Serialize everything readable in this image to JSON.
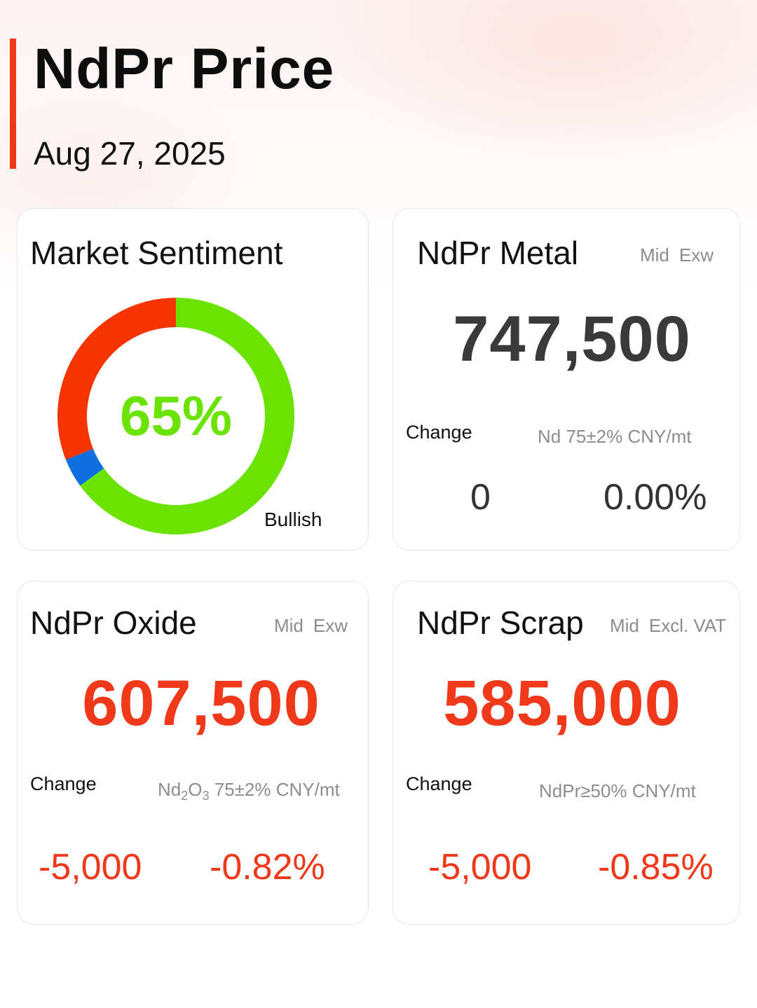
{
  "header": {
    "title": "NdPr Price",
    "date": "Aug 27, 2025"
  },
  "colors": {
    "accent": "#f0391a",
    "bullish": "#6be300",
    "bearish": "#f63400",
    "neutral": "#0f6fe0",
    "price_neutral": "#3a3a3a",
    "price_down": "#f0391a"
  },
  "sentiment": {
    "title": "Market Sentiment",
    "percent_label": "65%",
    "label": "Bullish",
    "segments": [
      {
        "name": "Bullish",
        "value": 0.65,
        "color": "#6be300"
      },
      {
        "name": "Neutral",
        "value": 0.04,
        "color": "#0f6fe0"
      },
      {
        "name": "Bearish",
        "value": 0.31,
        "color": "#f63400"
      }
    ]
  },
  "metal": {
    "title": "NdPr Metal",
    "meta_1": "Mid",
    "meta_2": "Exw",
    "price": "747,500",
    "change_label": "Change",
    "spec": "Nd 75±2% CNY/mt",
    "change_abs": "0",
    "change_pct": "0.00%"
  },
  "oxide": {
    "title": "NdPr Oxide",
    "meta_1": "Mid",
    "meta_2": "Exw",
    "price": "607,500",
    "change_label": "Change",
    "spec_prefix": "Nd",
    "spec_sub1": "2",
    "spec_mid": "O",
    "spec_sub2": "3",
    "spec_suffix": " 75±2% CNY/mt",
    "change_abs": "-5,000",
    "change_pct": "-0.82%"
  },
  "scrap": {
    "title": "NdPr Scrap",
    "meta_1": "Mid",
    "meta_2": "Excl. VAT",
    "price": "585,000",
    "change_label": "Change",
    "spec": "NdPr≥50% CNY/mt",
    "change_abs": "-5,000",
    "change_pct": "-0.85%"
  }
}
